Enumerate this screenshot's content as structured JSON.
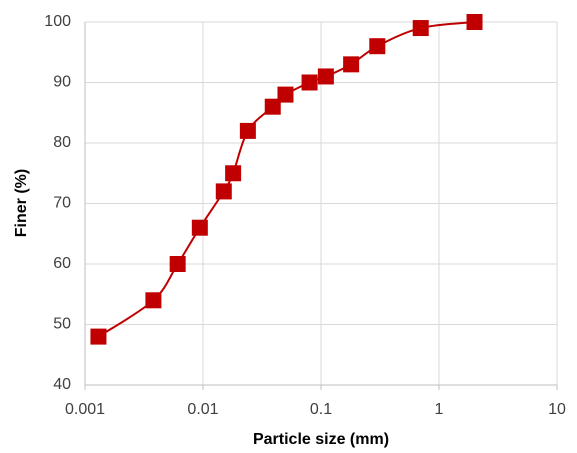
{
  "chart_data": {
    "type": "scatter",
    "x_label": "Particle size (mm)",
    "y_label": "Finer (%)",
    "x": [
      0.0013,
      0.0038,
      0.0061,
      0.0094,
      0.015,
      0.018,
      0.024,
      0.039,
      0.05,
      0.08,
      0.11,
      0.18,
      0.3,
      0.7,
      2
    ],
    "values": [
      48,
      54,
      60,
      66,
      72,
      75,
      82,
      86,
      88,
      90,
      91,
      93,
      96,
      99,
      100
    ],
    "color": "#c00000",
    "xscale": "log",
    "smooth": true,
    "grid": true,
    "xlim": [
      0.001,
      10
    ],
    "xticks": [
      0.001,
      0.01,
      0.1,
      1,
      10
    ],
    "ylim": [
      40,
      100
    ],
    "yticks": [
      40,
      50,
      60,
      70,
      80,
      90,
      100
    ]
  }
}
